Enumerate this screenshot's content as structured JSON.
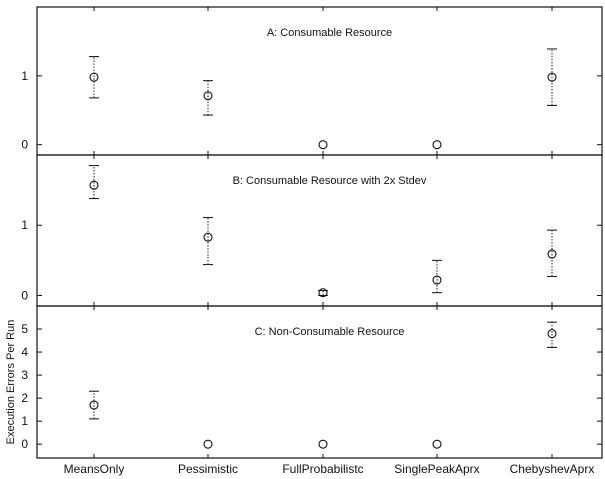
{
  "chart_data": {
    "type": "scatter",
    "ylabel": "Execution Errors Per Run",
    "categories": [
      "MeansOnly",
      "Pessimistic",
      "FullProbabilistc",
      "SinglePeakAprx",
      "ChebyshevAprx"
    ],
    "panels": [
      {
        "id": "A",
        "title": "A: Consumable Resource",
        "ylim": [
          -0.15,
          2.0
        ],
        "yticks": [
          "0",
          "1"
        ],
        "ytick_values": [
          0,
          1
        ],
        "points": [
          {
            "category": "MeansOnly",
            "mean": 0.98,
            "lower": 0.68,
            "upper": 1.28
          },
          {
            "category": "Pessimistic",
            "mean": 0.71,
            "lower": 0.43,
            "upper": 0.93
          },
          {
            "category": "FullProbabilistc",
            "mean": 0.0,
            "lower": 0.0,
            "upper": 0.0
          },
          {
            "category": "SinglePeakAprx",
            "mean": 0.0,
            "lower": 0.0,
            "upper": 0.0
          },
          {
            "category": "ChebyshevAprx",
            "mean": 0.98,
            "lower": 0.57,
            "upper": 1.39
          }
        ]
      },
      {
        "id": "B",
        "title": "B: Consumable Resource with 2x Stdev",
        "ylim": [
          -0.15,
          2.0
        ],
        "yticks": [
          "0",
          "1"
        ],
        "ytick_values": [
          0,
          1
        ],
        "points": [
          {
            "category": "MeansOnly",
            "mean": 1.57,
            "lower": 1.38,
            "upper": 1.85
          },
          {
            "category": "Pessimistic",
            "mean": 0.83,
            "lower": 0.44,
            "upper": 1.11
          },
          {
            "category": "FullProbabilistc",
            "mean": 0.04,
            "lower": 0.0,
            "upper": 0.07
          },
          {
            "category": "SinglePeakAprx",
            "mean": 0.22,
            "lower": 0.04,
            "upper": 0.5
          },
          {
            "category": "ChebyshevAprx",
            "mean": 0.59,
            "lower": 0.27,
            "upper": 0.93
          }
        ]
      },
      {
        "id": "C",
        "title": "C: Non-Consumable Resource",
        "ylim": [
          -0.6,
          6.0
        ],
        "yticks": [
          "0",
          "1",
          "2",
          "3",
          "4",
          "5"
        ],
        "ytick_values": [
          0,
          1,
          2,
          3,
          4,
          5
        ],
        "points": [
          {
            "category": "MeansOnly",
            "mean": 1.7,
            "lower": 1.1,
            "upper": 2.3
          },
          {
            "category": "Pessimistic",
            "mean": 0.0,
            "lower": 0.0,
            "upper": 0.0
          },
          {
            "category": "FullProbabilistc",
            "mean": 0.0,
            "lower": 0.0,
            "upper": 0.0
          },
          {
            "category": "SinglePeakAprx",
            "mean": 0.0,
            "lower": 0.0,
            "upper": 0.0
          },
          {
            "category": "ChebyshevAprx",
            "mean": 4.8,
            "lower": 4.2,
            "upper": 5.3
          }
        ]
      }
    ]
  }
}
